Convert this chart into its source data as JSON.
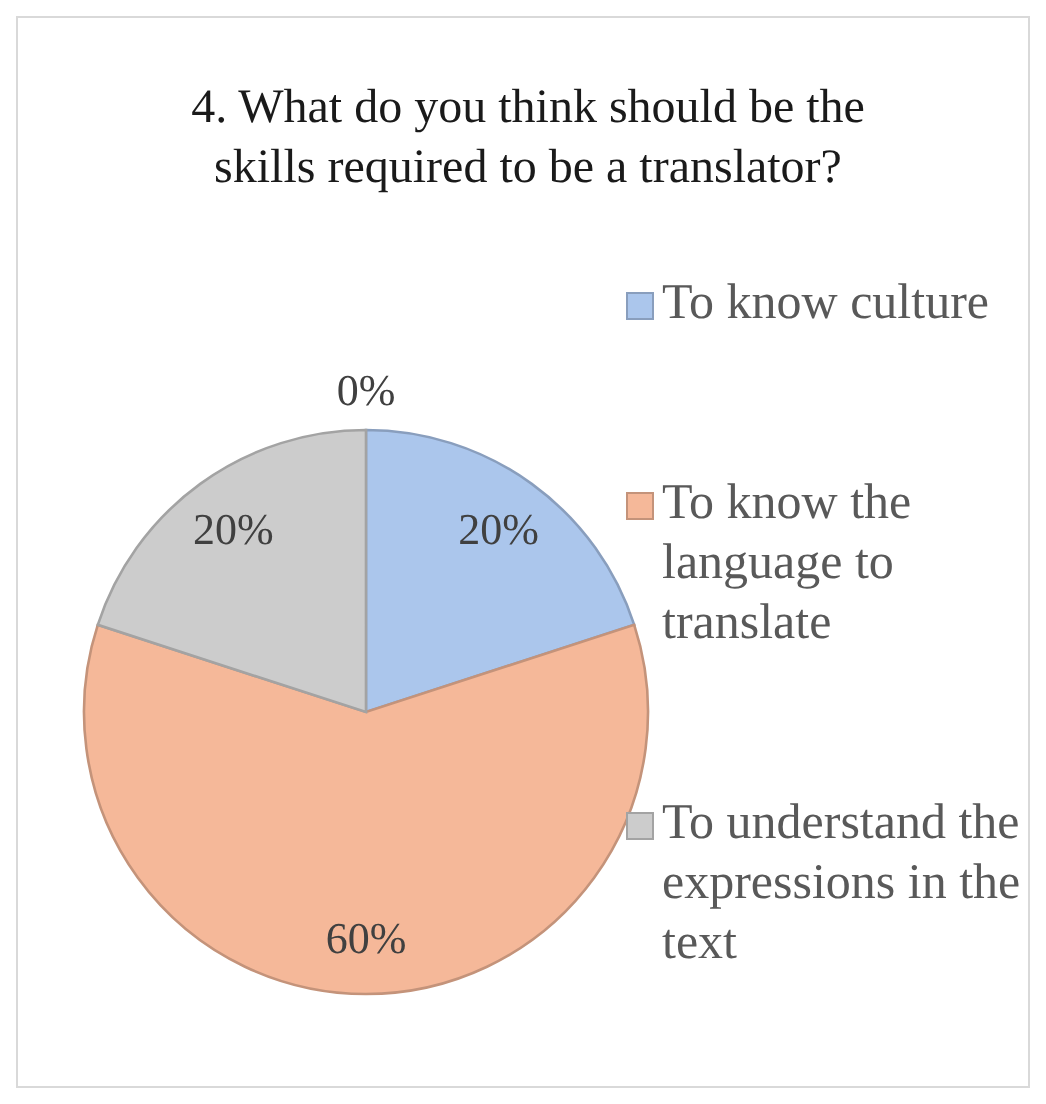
{
  "chart_data": {
    "type": "pie",
    "title": "4. What do you think should be the skills required to be a translator?",
    "categories": [
      "To know culture",
      "To know the language to translate",
      "To understand the expressions in the text",
      null
    ],
    "values": [
      20,
      60,
      20,
      0
    ],
    "value_labels": [
      "20%",
      "60%",
      "20%",
      "0%"
    ],
    "colors": [
      "#abc6ec",
      "#f5b899",
      "#cccccc",
      "#ffc000"
    ],
    "legend": "right"
  }
}
